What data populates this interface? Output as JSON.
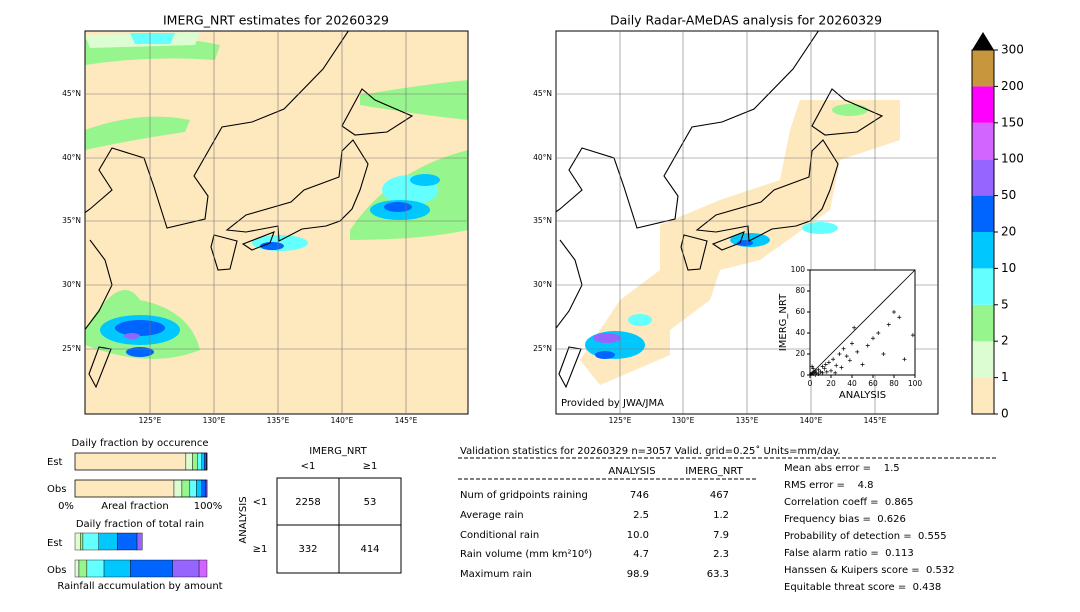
{
  "left_map": {
    "title": "IMERG_NRT estimates for 20260329",
    "lat_labels": [
      "45°N",
      "40°N",
      "35°N",
      "30°N",
      "25°N"
    ],
    "lon_labels": [
      "125°E",
      "130°E",
      "135°E",
      "140°E",
      "145°E"
    ]
  },
  "right_map": {
    "title": "Daily Radar-AMeDAS analysis for 20260329",
    "lat_labels": [
      "45°N",
      "40°N",
      "35°N",
      "30°N",
      "25°N"
    ],
    "lon_labels": [
      "125°E",
      "130°E",
      "135°E",
      "140°E",
      "145°E"
    ],
    "credit": "Provided by JWA/JMA"
  },
  "colorbar": {
    "levels": [
      0,
      1,
      2,
      5,
      10,
      20,
      50,
      100,
      150,
      200,
      300
    ],
    "colors": [
      "#fee8be",
      "#dcfcd2",
      "#96f58c",
      "#64ffff",
      "#00c8ff",
      "#0064ff",
      "#9664ff",
      "#d264ff",
      "#ff00ff",
      "#c8963c"
    ]
  },
  "scatter": {
    "type": "scatter",
    "xlabel": "ANALYSIS",
    "ylabel": "IMERG_NRT",
    "xlim": [
      0,
      100
    ],
    "ylim": [
      0,
      100
    ],
    "xticks": [
      0,
      20,
      40,
      60,
      80,
      100
    ],
    "yticks": [
      0,
      20,
      40,
      60,
      80,
      100
    ],
    "x": [
      1,
      2,
      3,
      4,
      5,
      6,
      8,
      10,
      12,
      14,
      15,
      18,
      20,
      22,
      25,
      28,
      30,
      32,
      35,
      38,
      40,
      45,
      50,
      55,
      60,
      65,
      70,
      75,
      80,
      85,
      90,
      98,
      5,
      8,
      12,
      3,
      2,
      16,
      24,
      42
    ],
    "y": [
      1,
      2,
      1,
      3,
      4,
      2,
      5,
      3,
      8,
      6,
      10,
      12,
      4,
      15,
      9,
      20,
      7,
      25,
      18,
      14,
      30,
      22,
      10,
      28,
      35,
      40,
      20,
      48,
      60,
      55,
      15,
      38,
      0,
      1,
      2,
      6,
      8,
      3,
      2,
      45
    ]
  },
  "occurrence": {
    "title": "Daily fraction by occurence",
    "rows": [
      "Est",
      "Obs"
    ],
    "xlabel": "Areal fraction",
    "left": "0%",
    "right": "100%",
    "est": [
      0.84,
      0.05,
      0.04,
      0.03,
      0.02,
      0.015,
      0.005,
      0,
      0,
      0
    ],
    "obs": [
      0.75,
      0.06,
      0.06,
      0.05,
      0.04,
      0.03,
      0.01,
      0,
      0,
      0
    ]
  },
  "total_rain": {
    "title": "Daily fraction of total rain",
    "rows": [
      "Est",
      "Obs"
    ],
    "xlabel": "Rainfall accumulation by amount",
    "est": [
      0,
      0.04,
      0.02,
      0.12,
      0.14,
      0.15,
      0.04,
      0,
      0,
      0
    ],
    "obs": [
      0,
      0.03,
      0.06,
      0.13,
      0.2,
      0.32,
      0.2,
      0.06,
      0,
      0
    ]
  },
  "contingency": {
    "column_title": "IMERG_NRT",
    "columns": [
      "<1",
      "≥1"
    ],
    "row_title": "ANALYSIS",
    "rows": [
      "<1",
      "≥1"
    ],
    "cells": [
      [
        "2258",
        "53"
      ],
      [
        "332",
        "414"
      ]
    ]
  },
  "validation": {
    "header": "Validation statistics for 20260329  n=3057 Valid. grid=0.25˚ Units=mm/day.",
    "columns": [
      "ANALYSIS",
      "IMERG_NRT"
    ],
    "rows": [
      {
        "label": "Num of gridpoints raining",
        "values": [
          "746",
          "467"
        ]
      },
      {
        "label": "Average rain",
        "values": [
          "2.5",
          "1.2"
        ]
      },
      {
        "label": "Conditional rain",
        "values": [
          "10.0",
          "7.9"
        ]
      },
      {
        "label": "Rain volume (mm km²10⁶)",
        "values": [
          "4.7",
          "2.3"
        ]
      },
      {
        "label": "Maximum rain",
        "values": [
          "98.9",
          "63.3"
        ]
      }
    ],
    "scores": [
      "Mean abs error =    1.5",
      "RMS error =    4.8",
      "Correlation coeff =  0.865",
      "Frequency bias =  0.626",
      "Probability of detection =  0.555",
      "False alarm ratio =  0.113",
      "Hanssen & Kuipers score =  0.532",
      "Equitable threat score =  0.438"
    ]
  }
}
